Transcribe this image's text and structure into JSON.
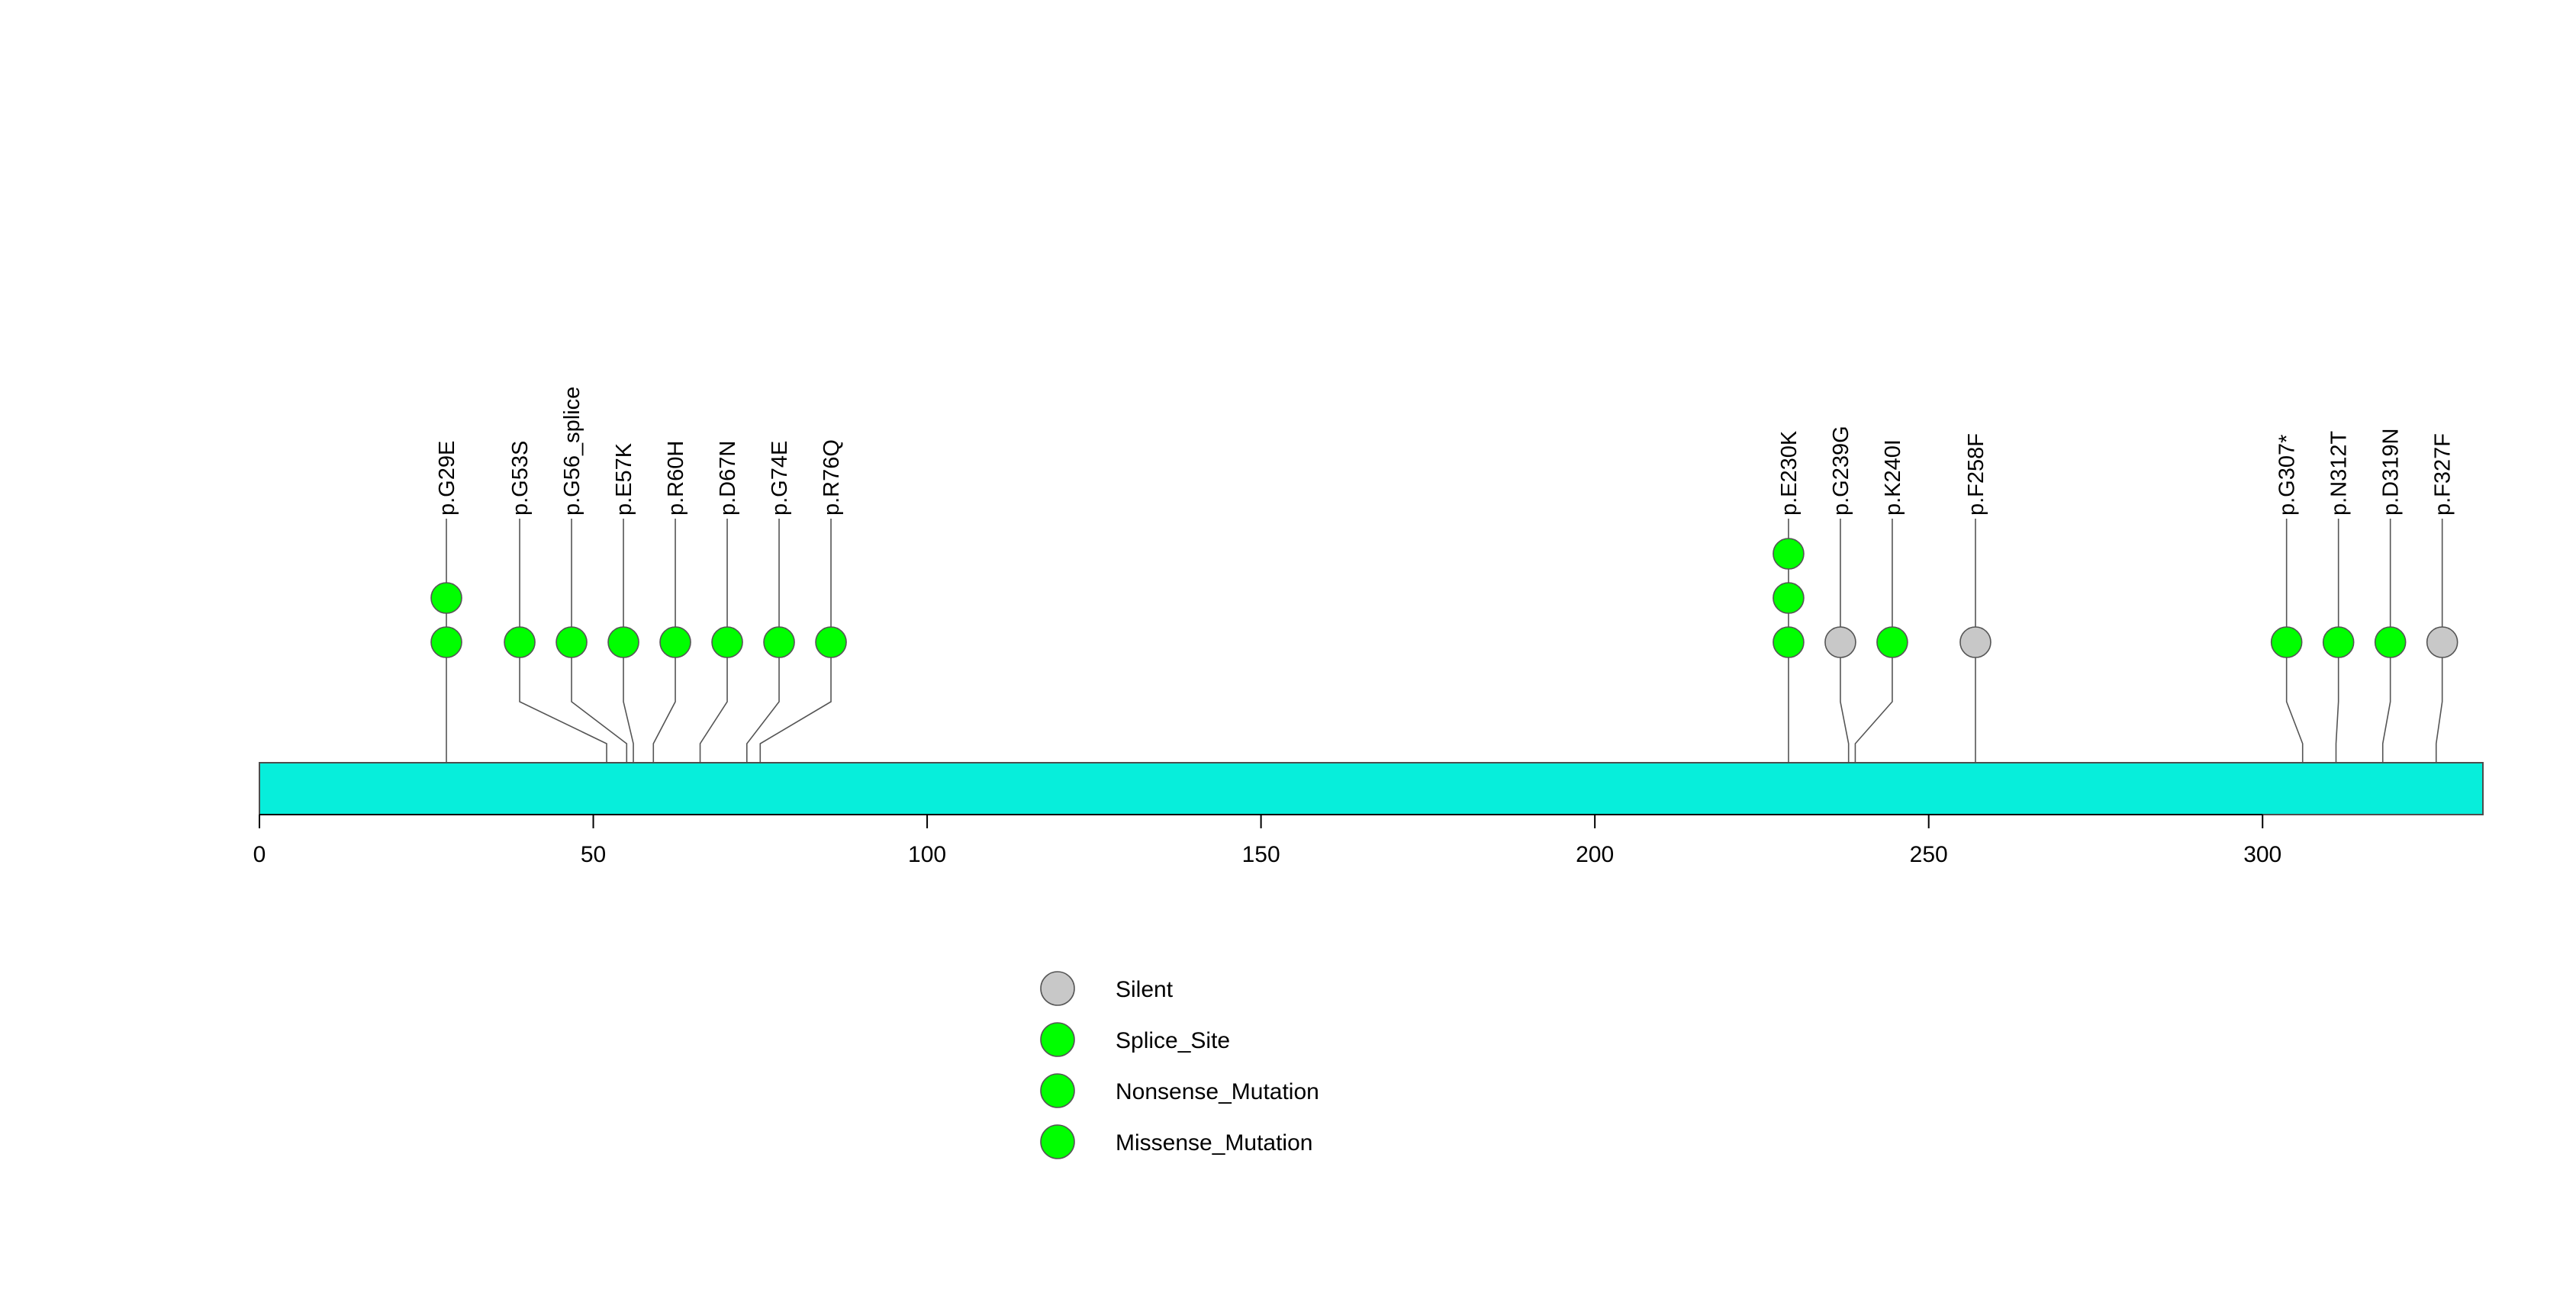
{
  "chart_data": {
    "type": "scatter",
    "subtype": "lollipop",
    "title": "",
    "xlabel": "",
    "ylabel": "",
    "xlim": [
      0,
      333
    ],
    "x_ticks": [
      0,
      50,
      100,
      150,
      200,
      250,
      300
    ],
    "x_tick_labels": [
      "0",
      "50",
      "100",
      "150",
      "200",
      "250",
      "300"
    ],
    "protein_bar_color": "#07EEDB",
    "grid": false,
    "legend_position": "bottom-center",
    "legend": [
      {
        "label": "Silent",
        "color": "#C8C8C8"
      },
      {
        "label": "Splice_Site",
        "color": "#00FF00"
      },
      {
        "label": "Nonsense_Mutation",
        "color": "#00FF00"
      },
      {
        "label": "Missense_Mutation",
        "color": "#00FF00"
      }
    ],
    "mutations": [
      {
        "label": "p.G29E",
        "position": 28,
        "count": 2,
        "category": "Missense_Mutation",
        "color": "#00FF00"
      },
      {
        "label": "p.G53S",
        "position": 52,
        "count": 1,
        "category": "Missense_Mutation",
        "color": "#00FF00"
      },
      {
        "label": "p.G56_splice",
        "position": 55,
        "count": 1,
        "category": "Splice_Site",
        "color": "#00FF00"
      },
      {
        "label": "p.E57K",
        "position": 56,
        "count": 1,
        "category": "Missense_Mutation",
        "color": "#00FF00"
      },
      {
        "label": "p.R60H",
        "position": 59,
        "count": 1,
        "category": "Missense_Mutation",
        "color": "#00FF00"
      },
      {
        "label": "p.D67N",
        "position": 66,
        "count": 1,
        "category": "Missense_Mutation",
        "color": "#00FF00"
      },
      {
        "label": "p.G74E",
        "position": 73,
        "count": 1,
        "category": "Missense_Mutation",
        "color": "#00FF00"
      },
      {
        "label": "p.R76Q",
        "position": 75,
        "count": 1,
        "category": "Missense_Mutation",
        "color": "#00FF00"
      },
      {
        "label": "p.E230K",
        "position": 229,
        "count": 3,
        "category": "Missense_Mutation",
        "color": "#00FF00"
      },
      {
        "label": "p.G239G",
        "position": 238,
        "count": 1,
        "category": "Silent",
        "color": "#C8C8C8"
      },
      {
        "label": "p.K240I",
        "position": 239,
        "count": 1,
        "category": "Missense_Mutation",
        "color": "#00FF00"
      },
      {
        "label": "p.F258F",
        "position": 257,
        "count": 1,
        "category": "Silent",
        "color": "#C8C8C8"
      },
      {
        "label": "p.G307*",
        "position": 306,
        "count": 1,
        "category": "Nonsense_Mutation",
        "color": "#00FF00"
      },
      {
        "label": "p.N312T",
        "position": 311,
        "count": 1,
        "category": "Missense_Mutation",
        "color": "#00FF00"
      },
      {
        "label": "p.D319N",
        "position": 318,
        "count": 1,
        "category": "Missense_Mutation",
        "color": "#00FF00"
      },
      {
        "label": "p.F327F",
        "position": 326,
        "count": 1,
        "category": "Silent",
        "color": "#C8C8C8"
      }
    ]
  }
}
